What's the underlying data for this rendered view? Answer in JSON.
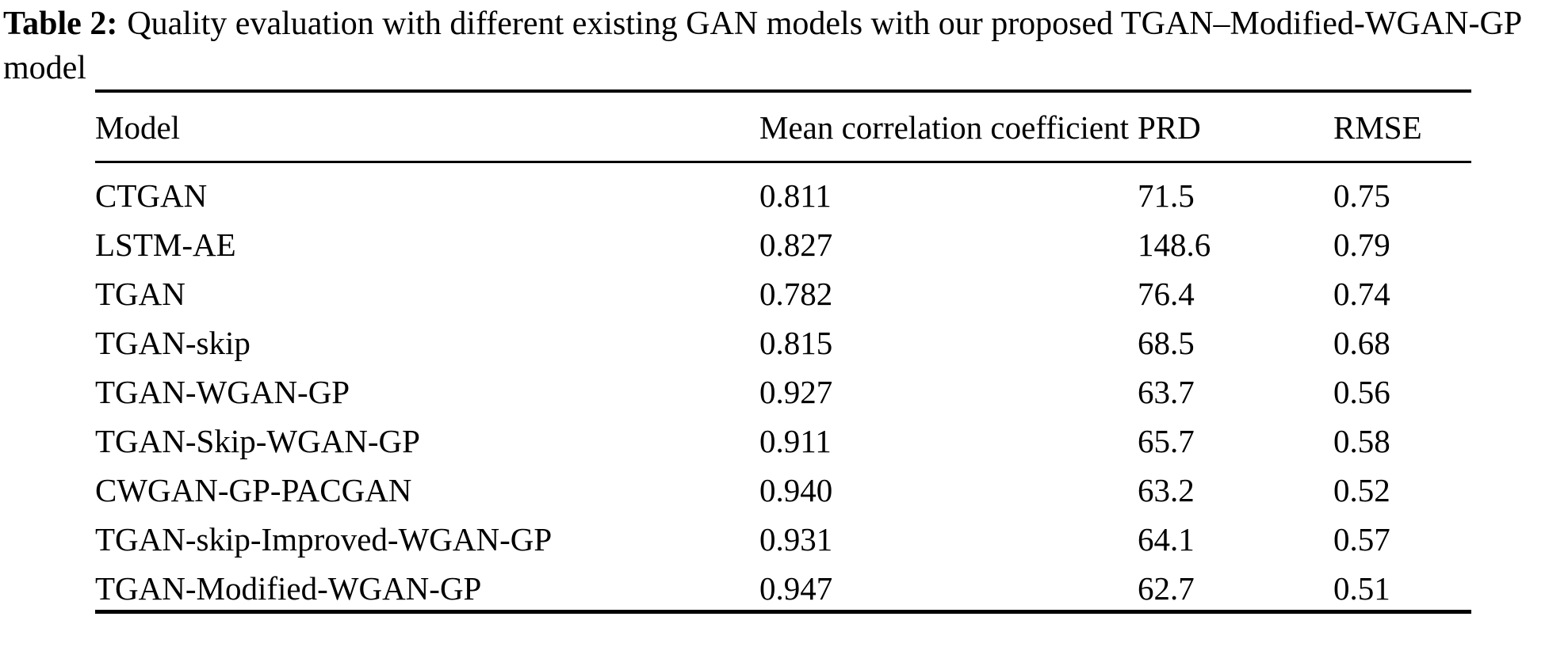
{
  "page": {
    "background_color": "#ffffff",
    "text_color": "#000000"
  },
  "caption": {
    "label": "Table 2:",
    "text": "Quality evaluation with different existing GAN models with our proposed TGAN–Modified-WGAN-GP model"
  },
  "table": {
    "columns": [
      {
        "key": "model",
        "label": "Model"
      },
      {
        "key": "mcc",
        "label": "Mean correlation coefficient"
      },
      {
        "key": "prd",
        "label": "PRD"
      },
      {
        "key": "rmse",
        "label": "RMSE"
      }
    ],
    "rows": [
      {
        "model": "CTGAN",
        "mcc": "0.811",
        "prd": "71.5",
        "rmse": "0.75"
      },
      {
        "model": "LSTM-AE",
        "mcc": "0.827",
        "prd": "148.6",
        "rmse": "0.79"
      },
      {
        "model": "TGAN",
        "mcc": "0.782",
        "prd": "76.4",
        "rmse": "0.74"
      },
      {
        "model": "TGAN-skip",
        "mcc": "0.815",
        "prd": "68.5",
        "rmse": "0.68"
      },
      {
        "model": "TGAN-WGAN-GP",
        "mcc": "0.927",
        "prd": "63.7",
        "rmse": "0.56"
      },
      {
        "model": "TGAN-Skip-WGAN-GP",
        "mcc": "0.911",
        "prd": "65.7",
        "rmse": "0.58"
      },
      {
        "model": "CWGAN-GP-PACGAN",
        "mcc": "0.940",
        "prd": "63.2",
        "rmse": "0.52"
      },
      {
        "model": "TGAN-skip-Improved-WGAN-GP",
        "mcc": "0.931",
        "prd": "64.1",
        "rmse": "0.57"
      },
      {
        "model": "TGAN-Modified-WGAN-GP",
        "mcc": "0.947",
        "prd": "62.7",
        "rmse": "0.51"
      }
    ]
  }
}
